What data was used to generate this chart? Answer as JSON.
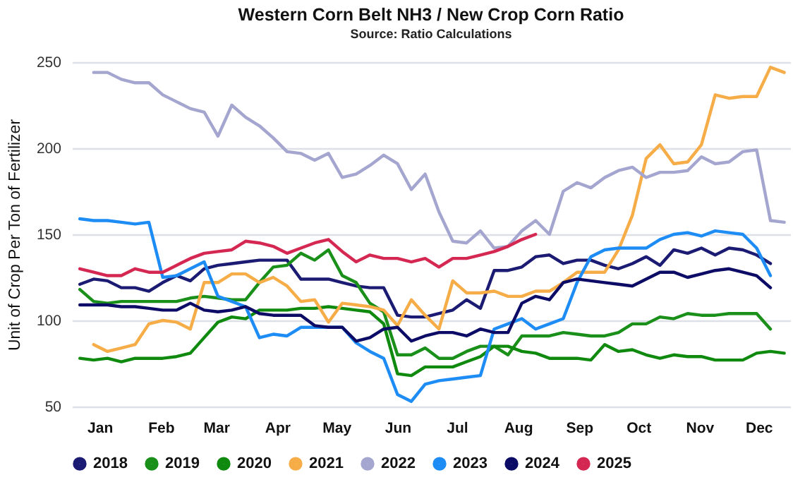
{
  "chart_data": {
    "type": "line",
    "title": "Western Corn Belt NH3 / New Crop Corn Ratio",
    "subtitle": "Source: Ratio Calculations",
    "ylabel": "Unit of Crop Per Ton of Fertilizer",
    "x": [
      "--01-05",
      "--01-12",
      "--01-19",
      "--01-26",
      "--02-02",
      "--02-09",
      "--02-16",
      "--02-23",
      "--03-02",
      "--03-09",
      "--03-16",
      "--03-23",
      "--03-30",
      "--04-06",
      "--04-13",
      "--04-20",
      "--04-27",
      "--05-04",
      "--05-11",
      "--05-18",
      "--05-25",
      "--06-01",
      "--06-08",
      "--06-15",
      "--06-22",
      "--06-29",
      "--07-06",
      "--07-13",
      "--07-20",
      "--07-27",
      "--08-03",
      "--08-10",
      "--08-17",
      "--08-24",
      "--08-31",
      "--09-07",
      "--09-14",
      "--09-21",
      "--09-28",
      "--10-05",
      "--10-12",
      "--10-19",
      "--10-26",
      "--11-02",
      "--11-09",
      "--11-16",
      "--11-23",
      "--11-30",
      "--12-07",
      "--12-14",
      "--12-21",
      "--12-28"
    ],
    "xlim": [
      "--01-01",
      "--12-31"
    ],
    "xticks": [
      {
        "value": "--01-15",
        "label": "Jan"
      },
      {
        "value": "--02-15",
        "label": "Feb"
      },
      {
        "value": "--03-15",
        "label": "Mar"
      },
      {
        "value": "--04-15",
        "label": "Apr"
      },
      {
        "value": "--05-15",
        "label": "May"
      },
      {
        "value": "--06-15",
        "label": "Jun"
      },
      {
        "value": "--07-15",
        "label": "Jul"
      },
      {
        "value": "--08-15",
        "label": "Aug"
      },
      {
        "value": "--09-15",
        "label": "Sep"
      },
      {
        "value": "--10-15",
        "label": "Oct"
      },
      {
        "value": "--11-15",
        "label": "Nov"
      },
      {
        "value": "--12-15",
        "label": "Dec"
      }
    ],
    "ylim": [
      50,
      250
    ],
    "yticks": [
      50,
      100,
      150,
      200,
      250
    ],
    "grid": "y",
    "legend": "bottom",
    "marker": "none",
    "line_style": "solid",
    "series": [
      {
        "name": "2018",
        "color": "#1b1b73",
        "values": [
          121,
          124,
          123,
          119,
          119,
          117,
          122,
          126,
          123,
          130,
          132,
          133,
          134,
          135,
          135,
          135,
          124,
          124,
          124,
          122,
          120,
          119,
          119,
          103,
          102,
          102,
          104,
          106,
          112,
          107,
          129,
          129,
          131,
          137,
          138,
          133,
          135,
          135,
          132,
          130,
          133,
          137,
          132,
          141,
          139,
          142,
          138,
          142,
          141,
          138,
          133,
          null
        ]
      },
      {
        "name": "2019",
        "color": "#1a901a",
        "values": [
          118,
          111,
          110,
          111,
          111,
          111,
          111,
          111,
          113,
          114,
          113,
          112,
          112,
          122,
          131,
          132,
          139,
          135,
          141,
          126,
          122,
          110,
          105,
          80,
          80,
          84,
          78,
          78,
          82,
          85,
          85,
          80,
          91,
          91,
          91,
          93,
          92,
          91,
          91,
          93,
          98,
          98,
          102,
          101,
          104,
          103,
          103,
          104,
          104,
          104,
          95,
          null
        ]
      },
      {
        "name": "2020",
        "color": "#0f8a0f",
        "values": [
          78,
          77,
          78,
          76,
          78,
          78,
          78,
          79,
          81,
          90,
          99,
          102,
          101,
          106,
          106,
          106,
          107,
          107,
          108,
          107,
          106,
          105,
          98,
          69,
          68,
          73,
          73,
          73,
          76,
          79,
          85,
          85,
          82,
          81,
          78,
          78,
          78,
          77,
          86,
          82,
          83,
          80,
          78,
          80,
          79,
          79,
          77,
          77,
          77,
          81,
          82,
          81
        ]
      },
      {
        "name": "2021",
        "color": "#f6ad48",
        "values": [
          null,
          86,
          82,
          84,
          86,
          98,
          100,
          99,
          95,
          122,
          122,
          127,
          127,
          122,
          125,
          120,
          111,
          112,
          99,
          110,
          109,
          108,
          106,
          97,
          112,
          103,
          95,
          123,
          116,
          116,
          117,
          114,
          114,
          117,
          117,
          122,
          128,
          128,
          128,
          141,
          161,
          194,
          202,
          191,
          192,
          202,
          231,
          229,
          230,
          230,
          247,
          244
        ]
      },
      {
        "name": "2022",
        "color": "#a4a6cf",
        "values": [
          null,
          244,
          244,
          240,
          238,
          238,
          231,
          227,
          223,
          221,
          207,
          225,
          218,
          213,
          206,
          198,
          197,
          193,
          197,
          183,
          185,
          190,
          196,
          191,
          176,
          185,
          163,
          146,
          145,
          152,
          142,
          143,
          152,
          158,
          150,
          175,
          180,
          177,
          183,
          187,
          189,
          183,
          186,
          186,
          187,
          195,
          191,
          192,
          198,
          199,
          158,
          157
        ]
      },
      {
        "name": "2023",
        "color": "#1e8cf5",
        "values": [
          159,
          158,
          158,
          157,
          156,
          157,
          125,
          126,
          130,
          134,
          114,
          111,
          108,
          90,
          92,
          91,
          96,
          96,
          96,
          96,
          87,
          82,
          78,
          57,
          53,
          63,
          65,
          66,
          67,
          68,
          95,
          98,
          101,
          95,
          98,
          101,
          122,
          137,
          141,
          142,
          142,
          142,
          147,
          150,
          151,
          149,
          152,
          151,
          150,
          142,
          126,
          null
        ]
      },
      {
        "name": "2024",
        "color": "#0c0c66",
        "values": [
          109,
          109,
          109,
          108,
          108,
          107,
          106,
          106,
          110,
          106,
          105,
          106,
          108,
          104,
          103,
          103,
          103,
          97,
          96,
          96,
          88,
          90,
          95,
          96,
          88,
          91,
          93,
          93,
          91,
          95,
          93,
          93,
          110,
          114,
          112,
          122,
          124,
          123,
          122,
          121,
          120,
          124,
          128,
          128,
          125,
          127,
          129,
          130,
          128,
          126,
          119,
          null
        ]
      },
      {
        "name": "2025",
        "color": "#d42852",
        "values": [
          130,
          128,
          126,
          126,
          130,
          128,
          128,
          132,
          136,
          139,
          140,
          141,
          146,
          145,
          143,
          139,
          142,
          145,
          147,
          140,
          134,
          138,
          136,
          136,
          134,
          136,
          131,
          136,
          136,
          138,
          140,
          143,
          147,
          150,
          null,
          null,
          null,
          null,
          null,
          null,
          null,
          null,
          null,
          null,
          null,
          null,
          null,
          null,
          null,
          null,
          null,
          null
        ]
      }
    ]
  }
}
